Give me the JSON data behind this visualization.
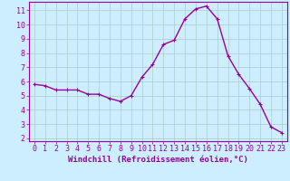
{
  "x": [
    0,
    1,
    2,
    3,
    4,
    5,
    6,
    7,
    8,
    9,
    10,
    11,
    12,
    13,
    14,
    15,
    16,
    17,
    18,
    19,
    20,
    21,
    22,
    23
  ],
  "y": [
    5.8,
    5.7,
    5.4,
    5.4,
    5.4,
    5.1,
    5.1,
    4.8,
    4.6,
    5.0,
    6.3,
    7.2,
    8.6,
    8.9,
    10.4,
    11.1,
    11.3,
    10.4,
    7.8,
    6.5,
    5.5,
    4.4,
    2.8,
    2.4
  ],
  "line_color": "#990099",
  "marker": "+",
  "markersize": 3,
  "linewidth": 1.0,
  "background_color": "#cceeff",
  "grid_color": "#aacccc",
  "xlabel": "Windchill (Refroidissement éolien,°C)",
  "xlabel_color": "#990099",
  "xlim": [
    -0.5,
    23.5
  ],
  "ylim": [
    1.8,
    11.6
  ],
  "yticks": [
    2,
    3,
    4,
    5,
    6,
    7,
    8,
    9,
    10,
    11
  ],
  "xticks": [
    0,
    1,
    2,
    3,
    4,
    5,
    6,
    7,
    8,
    9,
    10,
    11,
    12,
    13,
    14,
    15,
    16,
    17,
    18,
    19,
    20,
    21,
    22,
    23
  ],
  "tick_color": "#990099",
  "spine_color": "#990099",
  "font_size": 6,
  "xlabel_fontsize": 6.5
}
